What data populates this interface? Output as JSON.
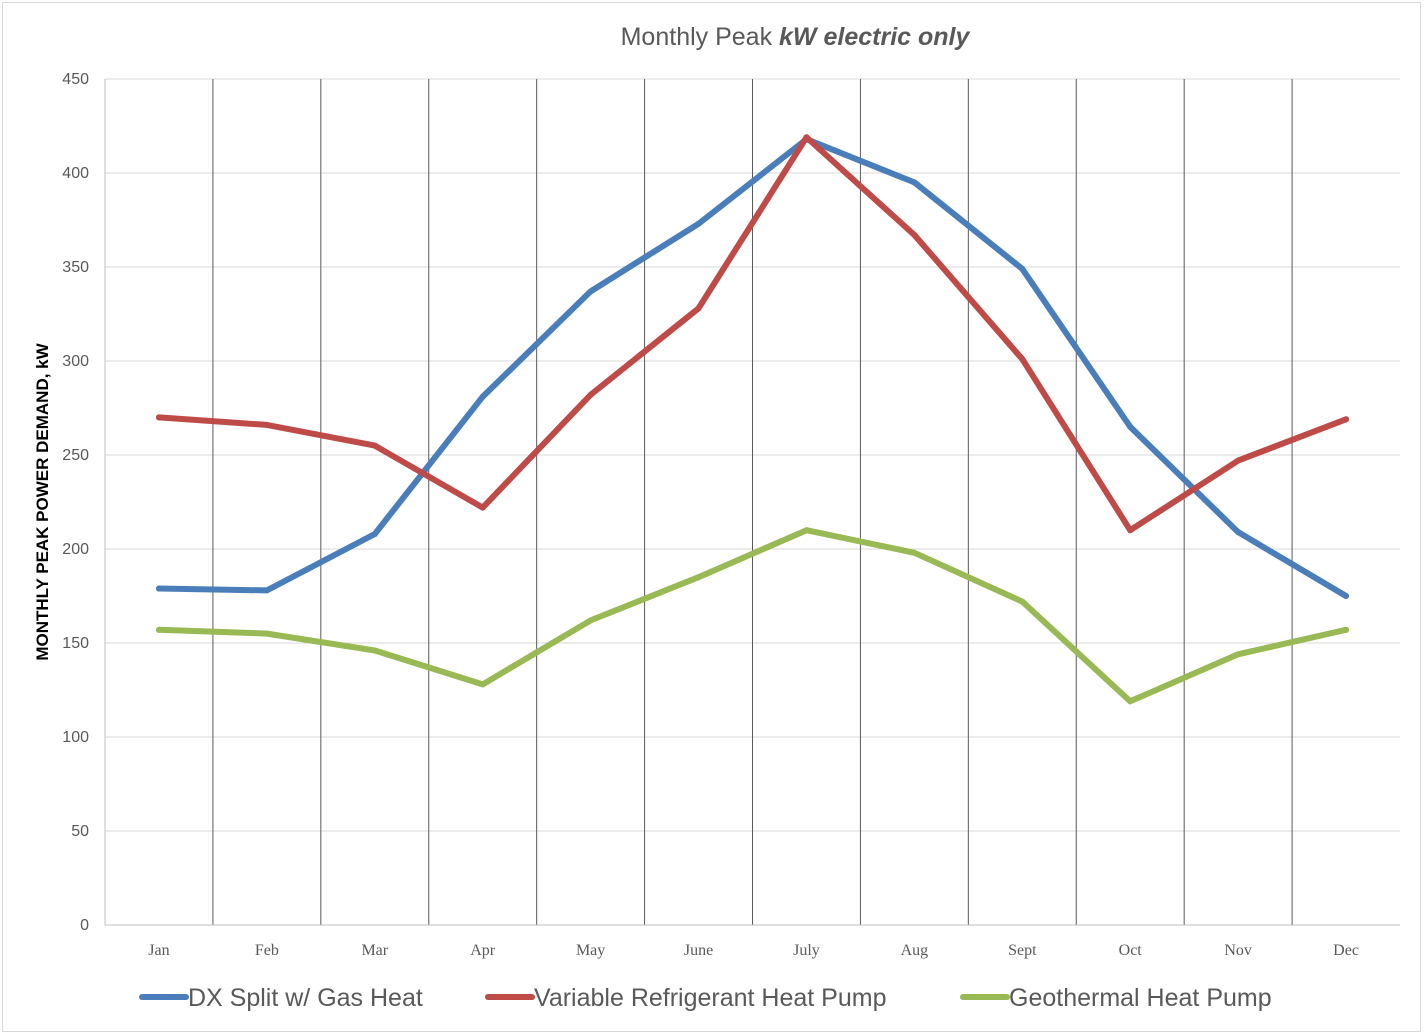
{
  "chart_data": {
    "type": "line",
    "title_prefix": "Monthly Peak ",
    "title_emphasis": "kW electric only",
    "xlabel": "",
    "ylabel": "MONTHLY PEAK POWER DEMAND, kW",
    "categories": [
      "Jan",
      "Feb",
      "Mar",
      "Apr",
      "May",
      "June",
      "July",
      "Aug",
      "Sept",
      "Oct",
      "Nov",
      "Dec"
    ],
    "ylim": [
      0,
      450
    ],
    "yticks": [
      "0",
      "50",
      "100",
      "150",
      "200",
      "250",
      "300",
      "350",
      "400",
      "450"
    ],
    "grid": "horizontal and vertical",
    "legend_position": "bottom",
    "series": [
      {
        "name": "DX Split w/ Gas Heat",
        "color": "#4a7ebb",
        "values": [
          179,
          178,
          208,
          281,
          337,
          373,
          418,
          395,
          349,
          265,
          209,
          175
        ]
      },
      {
        "name": "Variable Refrigerant Heat Pump",
        "color": "#be4b48",
        "values": [
          270,
          266,
          255,
          222,
          282,
          328,
          419,
          367,
          301,
          210,
          247,
          269
        ]
      },
      {
        "name": "Geothermal Heat Pump",
        "color": "#98b954",
        "values": [
          157,
          155,
          146,
          128,
          162,
          185,
          210,
          198,
          172,
          119,
          144,
          157
        ]
      }
    ]
  }
}
